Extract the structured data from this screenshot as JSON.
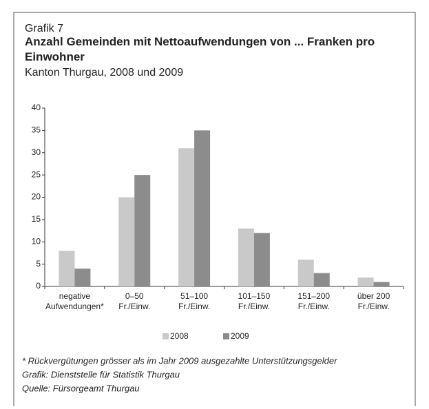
{
  "chart_data": {
    "type": "bar",
    "label": "Grafik 7",
    "title": "Anzahl Gemeinden mit Nettoaufwendungen von ... Franken pro Einwohner",
    "subtitle": "Kanton Thurgau, 2008 und 2009",
    "categories": [
      "negative\nAufwendungen*",
      "0–50\nFr./Einw.",
      "51–100\nFr./Einw.",
      "101–150\nFr./Einw.",
      "151–200\nFr./Einw.",
      "über 200\nFr./Einw."
    ],
    "series": [
      {
        "name": "2008",
        "color": "#c9c9c9",
        "values": [
          8,
          20,
          31,
          13,
          6,
          2
        ]
      },
      {
        "name": "2009",
        "color": "#8c8c8c",
        "values": [
          4,
          25,
          35,
          12,
          3,
          1
        ]
      }
    ],
    "ylim": [
      0,
      40
    ],
    "yticks": [
      0,
      5,
      10,
      15,
      20,
      25,
      30,
      35,
      40
    ],
    "grid": false,
    "notes": [
      "* Rückvergütungen grösser als im Jahr 2009 ausgezahlte Unterstützungsgelder",
      "Grafik: Dienststelle für Statistik Thurgau",
      "Quelle: Fürsorgeamt Thurgau"
    ]
  }
}
